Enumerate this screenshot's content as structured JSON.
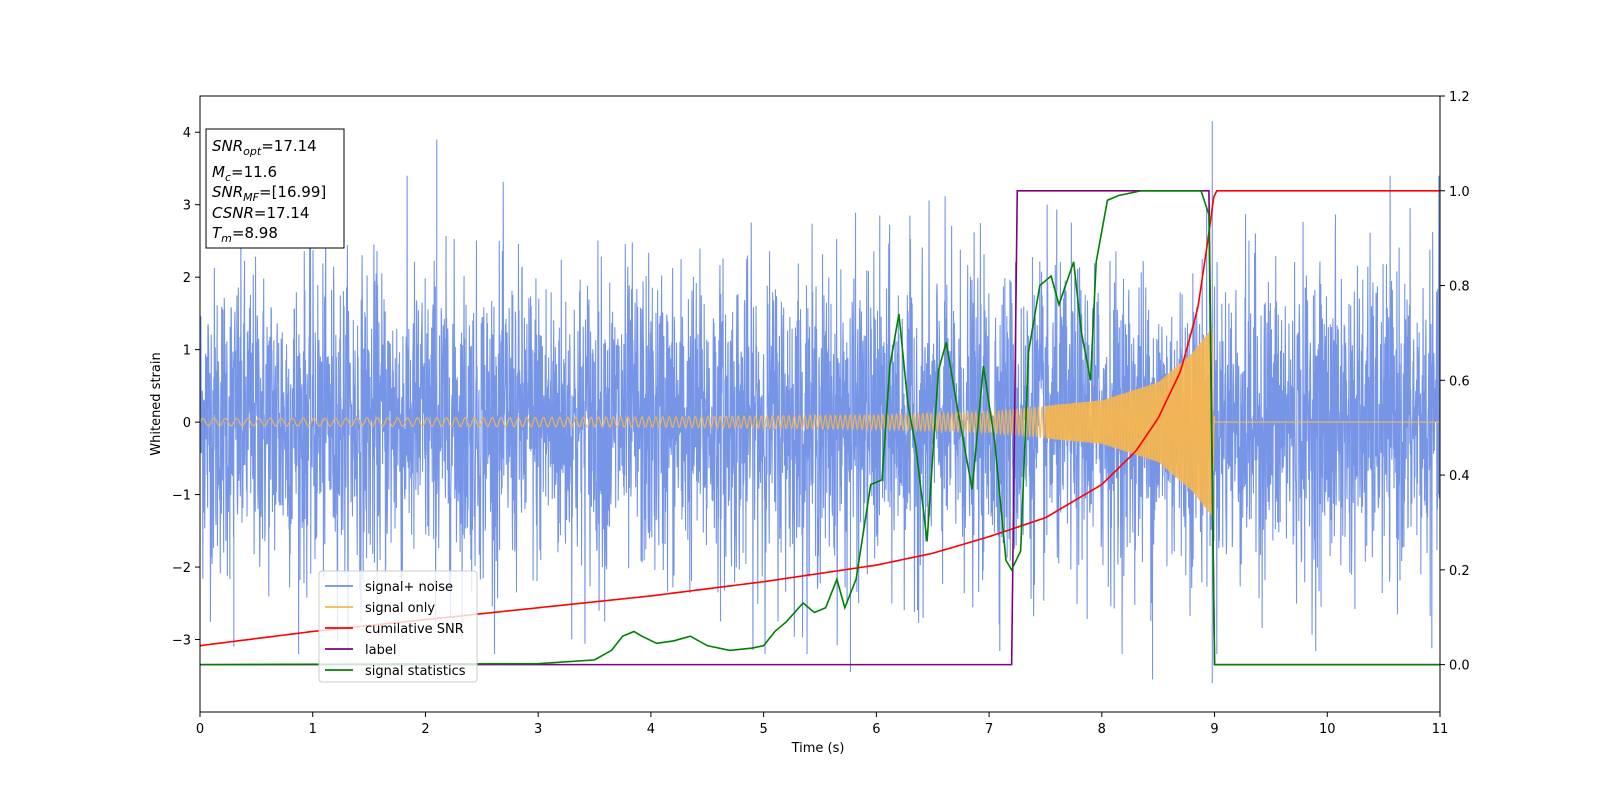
{
  "chart_data": {
    "type": "line",
    "xlabel": "Time (s)",
    "ylabel": "Whitened strain",
    "xlim": [
      0,
      11
    ],
    "ylim_left": [
      -4,
      4.5
    ],
    "ylim_right": [
      -0.1,
      1.2
    ],
    "x_ticks": [
      "0",
      "1",
      "2",
      "3",
      "4",
      "5",
      "6",
      "7",
      "8",
      "9",
      "10",
      "11"
    ],
    "y_ticks_left": [
      "−3",
      "−2",
      "−1",
      "0",
      "1",
      "2",
      "3",
      "4"
    ],
    "y_ticks_right": [
      "0.0",
      "0.2",
      "0.4",
      "0.6",
      "0.8",
      "1.0",
      "1.2"
    ],
    "info_box": {
      "snr_opt": {
        "var": "SNR",
        "sub": "opt",
        "value": "=17.14"
      },
      "mc": {
        "var": "M",
        "sub": "c",
        "value": "=11.6"
      },
      "snr_mf": {
        "var": "SNR",
        "sub": "MF",
        "value": "=[16.99]"
      },
      "csnr": {
        "var": "CSNR",
        "value": "=17.14"
      },
      "tm": {
        "var": "T",
        "sub": "m",
        "value": "=8.98"
      }
    },
    "legend": {
      "position": "lower-left",
      "entries": [
        {
          "label": "signal+ noise",
          "color": "#6f8fe6"
        },
        {
          "label": "signal only",
          "color": "#f5b652"
        },
        {
          "label": "cumilative SNR",
          "color": "#ff0000"
        },
        {
          "label": "label",
          "color": "#800080"
        },
        {
          "label": "signal statistics",
          "color": "#008000"
        }
      ]
    },
    "series": [
      {
        "name": "signal+ noise",
        "axis": "left",
        "color": "#6f8fe6",
        "description": "dense noise band, amplitude about ±2.5, peaks up to 4.15",
        "x_range": [
          0,
          11
        ],
        "envelope": [
          -2.5,
          2.5
        ],
        "peaks": [
          [
            2.1,
            3.9
          ],
          [
            8.98,
            4.15
          ],
          [
            0.3,
            -3.1
          ],
          [
            5.77,
            -3.45
          ],
          [
            8.45,
            -3.55
          ],
          [
            8.98,
            -3.6
          ]
        ]
      },
      {
        "name": "signal only",
        "axis": "left",
        "color": "#f5b652",
        "description": "chirp, amplitude rising from ~0.05 to ~1.3 at t=8.98, zero after",
        "amplitude_envelope": {
          "x": [
            0,
            4,
            6,
            7,
            8,
            8.5,
            8.8,
            8.98,
            9.0,
            11
          ],
          "y": [
            0.05,
            0.07,
            0.1,
            0.15,
            0.3,
            0.55,
            0.95,
            1.3,
            0,
            0
          ]
        }
      },
      {
        "name": "cumilative SNR",
        "axis": "right",
        "color": "#ff0000",
        "x": [
          0,
          1,
          2,
          3,
          4,
          5,
          6,
          6.5,
          7,
          7.5,
          8,
          8.3,
          8.5,
          8.7,
          8.85,
          8.95,
          9.0,
          11
        ],
        "y": [
          0.04,
          0.07,
          0.095,
          0.12,
          0.145,
          0.175,
          0.21,
          0.235,
          0.27,
          0.31,
          0.38,
          0.45,
          0.52,
          0.62,
          0.75,
          0.91,
          1.0,
          1.0
        ]
      },
      {
        "name": "label",
        "axis": "right",
        "color": "#800080",
        "x": [
          0,
          7.2,
          7.25,
          8.95,
          9.0,
          11
        ],
        "y": [
          0,
          0,
          1,
          1,
          0,
          0
        ]
      },
      {
        "name": "signal statistics",
        "axis": "right",
        "color": "#008000",
        "x": [
          0,
          3.0,
          3.5,
          3.65,
          3.75,
          3.85,
          3.92,
          4.05,
          4.2,
          4.35,
          4.5,
          4.7,
          4.9,
          5.0,
          5.1,
          5.2,
          5.35,
          5.45,
          5.55,
          5.65,
          5.72,
          5.82,
          5.95,
          6.05,
          6.12,
          6.2,
          6.28,
          6.35,
          6.45,
          6.55,
          6.62,
          6.72,
          6.85,
          6.95,
          7.05,
          7.15,
          7.2,
          7.28,
          7.35,
          7.45,
          7.55,
          7.62,
          7.75,
          7.82,
          7.9,
          7.95,
          8.05,
          8.15,
          8.35,
          8.5,
          8.88,
          8.95,
          9.0,
          11
        ],
        "y": [
          0,
          0.002,
          0.01,
          0.03,
          0.06,
          0.07,
          0.06,
          0.045,
          0.05,
          0.06,
          0.04,
          0.03,
          0.035,
          0.04,
          0.07,
          0.09,
          0.13,
          0.11,
          0.12,
          0.18,
          0.12,
          0.18,
          0.38,
          0.39,
          0.63,
          0.74,
          0.55,
          0.46,
          0.26,
          0.62,
          0.68,
          0.54,
          0.37,
          0.63,
          0.47,
          0.22,
          0.2,
          0.24,
          0.66,
          0.8,
          0.82,
          0.76,
          0.85,
          0.7,
          0.6,
          0.85,
          0.98,
          0.99,
          1.0,
          1.0,
          1.0,
          0.95,
          0,
          0
        ]
      }
    ]
  }
}
